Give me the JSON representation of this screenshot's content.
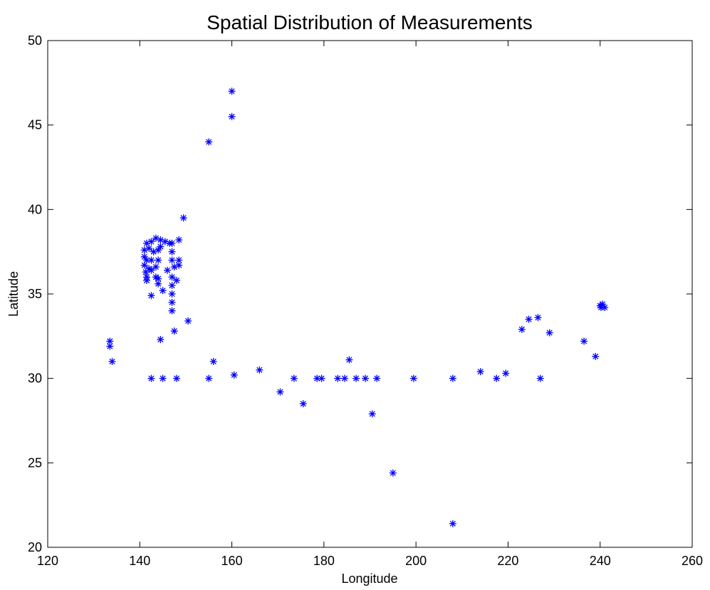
{
  "chart_data": {
    "type": "scatter",
    "title": "Spatial Distribution of Measurements",
    "xlabel": "Longitude",
    "ylabel": "Latitude",
    "xlim": [
      120,
      260
    ],
    "ylim": [
      20,
      50
    ],
    "xticks": [
      120,
      140,
      160,
      180,
      200,
      220,
      240,
      260
    ],
    "yticks": [
      20,
      25,
      30,
      35,
      40,
      45,
      50
    ],
    "grid": false,
    "marker": "asterisk",
    "marker_color": "#0000ff",
    "series": [
      {
        "points": [
          [
            160.0,
            47.0
          ],
          [
            160.0,
            45.5
          ],
          [
            155.0,
            44.0
          ],
          [
            149.5,
            39.5
          ],
          [
            141.5,
            38.0
          ],
          [
            142.5,
            38.1
          ],
          [
            143.5,
            38.3
          ],
          [
            144.5,
            38.2
          ],
          [
            145.5,
            38.1
          ],
          [
            146.5,
            38.0
          ],
          [
            147.0,
            38.0
          ],
          [
            148.5,
            38.2
          ],
          [
            141.0,
            37.6
          ],
          [
            142.0,
            37.7
          ],
          [
            143.0,
            37.5
          ],
          [
            144.0,
            37.6
          ],
          [
            144.5,
            37.8
          ],
          [
            147.0,
            37.5
          ],
          [
            141.0,
            37.2
          ],
          [
            141.5,
            37.0
          ],
          [
            142.5,
            37.0
          ],
          [
            144.0,
            37.0
          ],
          [
            147.0,
            37.0
          ],
          [
            148.5,
            37.0
          ],
          [
            141.0,
            36.7
          ],
          [
            142.0,
            36.5
          ],
          [
            143.5,
            36.6
          ],
          [
            147.5,
            36.6
          ],
          [
            148.5,
            36.7
          ],
          [
            141.3,
            36.3
          ],
          [
            142.5,
            36.4
          ],
          [
            146.0,
            36.4
          ],
          [
            141.5,
            36.0
          ],
          [
            143.5,
            36.0
          ],
          [
            141.5,
            35.8
          ],
          [
            144.0,
            35.9
          ],
          [
            147.0,
            36.0
          ],
          [
            148.0,
            35.8
          ],
          [
            144.0,
            35.6
          ],
          [
            147.0,
            35.5
          ],
          [
            145.0,
            35.2
          ],
          [
            142.5,
            34.9
          ],
          [
            147.0,
            35.0
          ],
          [
            147.0,
            34.5
          ],
          [
            147.0,
            34.0
          ],
          [
            150.5,
            33.4
          ],
          [
            147.5,
            32.8
          ],
          [
            144.5,
            32.3
          ],
          [
            133.5,
            32.2
          ],
          [
            133.5,
            31.9
          ],
          [
            134.0,
            31.0
          ],
          [
            156.0,
            31.0
          ],
          [
            142.5,
            30.0
          ],
          [
            145.0,
            30.0
          ],
          [
            148.0,
            30.0
          ],
          [
            155.0,
            30.0
          ],
          [
            160.5,
            30.2
          ],
          [
            166.0,
            30.5
          ],
          [
            170.5,
            29.2
          ],
          [
            173.5,
            30.0
          ],
          [
            175.5,
            28.5
          ],
          [
            178.5,
            30.0
          ],
          [
            179.5,
            30.0
          ],
          [
            183.0,
            30.0
          ],
          [
            184.5,
            30.0
          ],
          [
            185.5,
            31.1
          ],
          [
            187.0,
            30.0
          ],
          [
            189.0,
            30.0
          ],
          [
            190.5,
            27.9
          ],
          [
            191.5,
            30.0
          ],
          [
            195.0,
            24.4
          ],
          [
            199.5,
            30.0
          ],
          [
            208.0,
            30.0
          ],
          [
            208.0,
            21.4
          ],
          [
            214.0,
            30.4
          ],
          [
            217.5,
            30.0
          ],
          [
            219.5,
            30.3
          ],
          [
            223.0,
            32.9
          ],
          [
            224.5,
            33.5
          ],
          [
            226.5,
            33.6
          ],
          [
            227.0,
            30.0
          ],
          [
            229.0,
            32.7
          ],
          [
            236.5,
            32.2
          ],
          [
            239.0,
            31.3
          ],
          [
            240.0,
            34.3
          ],
          [
            241.0,
            34.2
          ],
          [
            240.5,
            34.4
          ],
          [
            240.2,
            34.2
          ]
        ]
      }
    ]
  }
}
